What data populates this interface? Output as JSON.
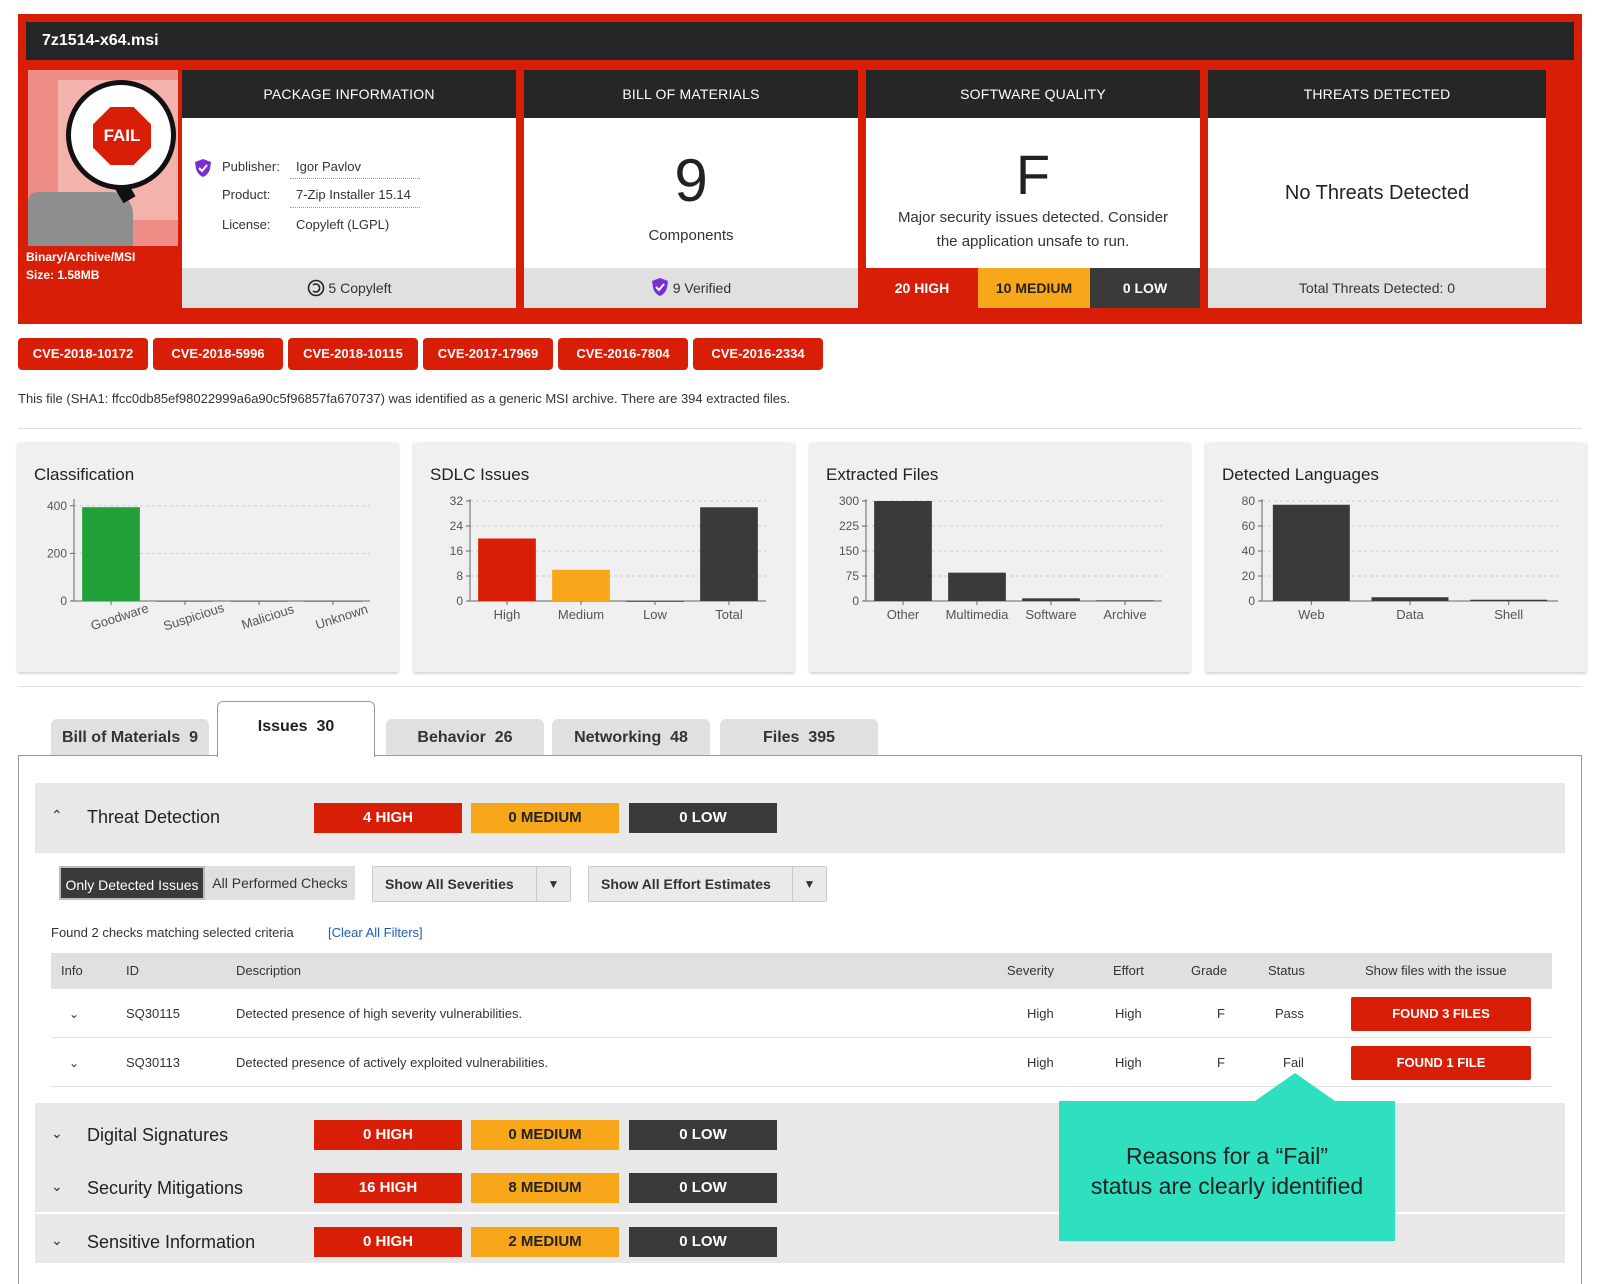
{
  "file": {
    "name": "7z1514-x64.msi",
    "badge": "FAIL",
    "type": "Binary/Archive/MSI",
    "size": "Size: 1.58MB"
  },
  "package": {
    "header": "PACKAGE INFORMATION",
    "publisher_k": "Publisher:",
    "publisher_v": "Igor Pavlov",
    "product_k": "Product:",
    "product_v": "7-Zip Installer 15.14",
    "license_k": "License:",
    "license_v": "Copyleft (LGPL)",
    "footer": "5 Copyleft"
  },
  "bom": {
    "header": "BILL OF MATERIALS",
    "count": "9",
    "label": "Components",
    "footer": "9 Verified"
  },
  "quality": {
    "header": "SOFTWARE QUALITY",
    "grade": "F",
    "line1": "Major security issues detected. Consider",
    "line2": "the application unsafe to run.",
    "high": "20 HIGH",
    "medium": "10 MEDIUM",
    "low": "0 LOW"
  },
  "threats": {
    "header": "THREATS DETECTED",
    "text": "No Threats Detected",
    "footer": "Total Threats Detected: 0"
  },
  "cves": [
    "CVE-2018-10172",
    "CVE-2018-5996",
    "CVE-2018-10115",
    "CVE-2017-17969",
    "CVE-2016-7804",
    "CVE-2016-2334"
  ],
  "description": "This file (SHA1: ffcc0db85ef98022999a6a90c5f96857fa670737) was identified as a generic MSI archive. There are 394 extracted files.",
  "chart_data": [
    {
      "type": "bar",
      "title": "Classification",
      "categories": [
        "Goodware",
        "Suspicious",
        "Malicious",
        "Unknown"
      ],
      "values": [
        394,
        0,
        0,
        0
      ],
      "yticks": [
        0,
        200,
        400
      ],
      "ylim": [
        0,
        420
      ],
      "colors": [
        "#22a03a"
      ],
      "rotate_labels": true
    },
    {
      "type": "bar",
      "title": "SDLC Issues",
      "categories": [
        "High",
        "Medium",
        "Low",
        "Total"
      ],
      "values": [
        20,
        10,
        0,
        30
      ],
      "yticks": [
        0,
        8,
        16,
        24,
        32
      ],
      "ylim": [
        0,
        32
      ],
      "colors": [
        "#d81e06",
        "#f8a61a",
        "#3a3a3a",
        "#3a3a3a"
      ]
    },
    {
      "type": "bar",
      "title": "Extracted Files",
      "categories": [
        "Other",
        "Multimedia",
        "Software",
        "Archive"
      ],
      "values": [
        300,
        85,
        8,
        2
      ],
      "yticks": [
        0,
        75,
        150,
        225,
        300
      ],
      "ylim": [
        0,
        300
      ],
      "colors": [
        "#3a3a3a"
      ]
    },
    {
      "type": "bar",
      "title": "Detected Languages",
      "categories": [
        "Web",
        "Data",
        "Shell"
      ],
      "values": [
        77,
        3,
        1
      ],
      "yticks": [
        0,
        20,
        40,
        60,
        80
      ],
      "ylim": [
        0,
        80
      ],
      "colors": [
        "#3a3a3a"
      ]
    }
  ],
  "tabs": {
    "bom": "Bill of Materials",
    "bom_n": "9",
    "issues": "Issues",
    "issues_n": "30",
    "behavior": "Behavior",
    "behavior_n": "26",
    "networking": "Networking",
    "networking_n": "48",
    "files": "Files",
    "files_n": "395"
  },
  "sections": {
    "threat": {
      "name": "Threat Detection",
      "high": "4 HIGH",
      "medium": "0 MEDIUM",
      "low": "0 LOW"
    },
    "digsig": {
      "name": "Digital Signatures",
      "high": "0 HIGH",
      "medium": "0 MEDIUM",
      "low": "0 LOW"
    },
    "secmit": {
      "name": "Security Mitigations",
      "high": "16 HIGH",
      "medium": "8 MEDIUM",
      "low": "0 LOW"
    },
    "sensitive": {
      "name": "Sensitive Information",
      "high": "0 HIGH",
      "medium": "2 MEDIUM",
      "low": "0 LOW"
    }
  },
  "filters": {
    "only_detected": "Only Detected Issues",
    "all_checks": "All Performed Checks",
    "severities": "Show All Severities",
    "efforts": "Show All Effort Estimates",
    "found": "Found 2 checks matching selected criteria",
    "clear": "[Clear All Filters]"
  },
  "table": {
    "headers": {
      "info": "Info",
      "id": "ID",
      "desc": "Description",
      "severity": "Severity",
      "effort": "Effort",
      "grade": "Grade",
      "status": "Status",
      "files": "Show files with the issue"
    },
    "rows": [
      {
        "id": "SQ30115",
        "desc": "Detected presence of high severity vulnerabilities.",
        "severity": "High",
        "effort": "High",
        "grade": "F",
        "status": "Pass",
        "files": "FOUND 3 FILES"
      },
      {
        "id": "SQ30113",
        "desc": "Detected presence of actively exploited vulnerabilities.",
        "severity": "High",
        "effort": "High",
        "grade": "F",
        "status": "Fail",
        "files": "FOUND 1 FILE"
      }
    ]
  },
  "callout": {
    "line1": "Reasons  for a “Fail”",
    "line2": "status are clearly identified"
  },
  "colors": {
    "brand_red": "#d81e06",
    "medium_orange": "#f8a61a",
    "low_dark": "#3a3a3a",
    "callout": "#2ee0bf",
    "goodware_green": "#22a03a"
  }
}
